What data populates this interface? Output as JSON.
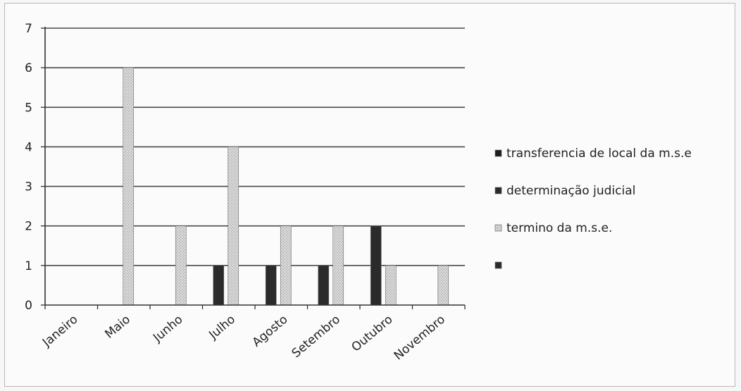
{
  "chart_data": {
    "type": "bar",
    "categories": [
      "Janeiro",
      "Maio",
      "Junho",
      "Julho",
      "Agosto",
      "Setembro",
      "Outubro",
      "Novembro"
    ],
    "series": [
      {
        "name": "transferencia de local da m.s.e",
        "values": [
          0,
          0,
          0,
          0,
          0,
          0,
          0,
          0
        ],
        "color": "#1e1e1e"
      },
      {
        "name": "determinação judicial",
        "values": [
          0,
          0,
          0,
          1,
          1,
          1,
          2,
          0
        ],
        "color": "#2b2b2b"
      },
      {
        "name": "termino da m.s.e.",
        "values": [
          0,
          6,
          2,
          4,
          2,
          2,
          1,
          1
        ],
        "color": "#cfcfcf"
      },
      {
        "name": "",
        "values": [
          0,
          0,
          0,
          0,
          0,
          0,
          0,
          0
        ],
        "color": "#2b2b2b"
      }
    ],
    "ylim": [
      0,
      7
    ],
    "yticks": [
      "0",
      "1",
      "2",
      "3",
      "4",
      "5",
      "6",
      "7"
    ],
    "grid": true,
    "legend": "right"
  }
}
